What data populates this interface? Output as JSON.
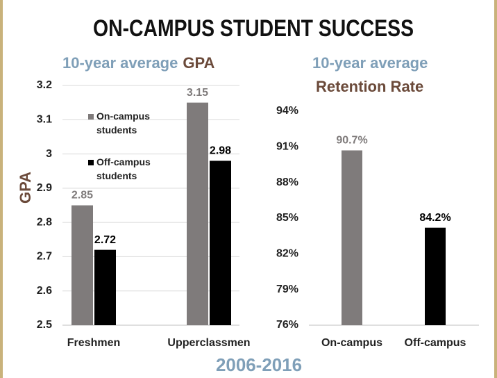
{
  "title": "ON-CAMPUS STUDENT SUCCESS",
  "footer": "2006-2016",
  "chart_data": [
    {
      "type": "bar",
      "title": "10-year average",
      "title_highlight": "GPA",
      "y_label": "GPA",
      "categories": [
        "Freshmen",
        "Upperclassmen"
      ],
      "series": [
        {
          "name": "On-campus students",
          "color": "#7f7b7b",
          "values": [
            2.85,
            3.15
          ]
        },
        {
          "name": "Off-campus students",
          "color": "#000000",
          "values": [
            2.72,
            2.98
          ]
        }
      ],
      "ylim": [
        2.5,
        3.2
      ],
      "yticks": [
        2.5,
        2.6,
        2.7,
        2.8,
        2.9,
        3,
        3.1,
        3.2
      ],
      "grid": true,
      "legend": "upper-left"
    },
    {
      "type": "bar",
      "title": "10-year average",
      "title_highlight": "Retention Rate",
      "categories": [
        "On-campus",
        "Off-campus"
      ],
      "values": [
        90.7,
        84.2
      ],
      "value_labels": [
        "90.7%",
        "84.2%"
      ],
      "colors": [
        "#7f7b7b",
        "#000000"
      ],
      "ylim": [
        76,
        94
      ],
      "yticks": [
        {
          "value": 76,
          "label": "76%"
        },
        {
          "value": 79,
          "label": "79%"
        },
        {
          "value": 82,
          "label": "82%"
        },
        {
          "value": 85,
          "label": "85%"
        },
        {
          "value": 88,
          "label": "88%"
        },
        {
          "value": 91,
          "label": "91%"
        },
        {
          "value": 94,
          "label": "94%"
        }
      ],
      "grid": false
    }
  ]
}
